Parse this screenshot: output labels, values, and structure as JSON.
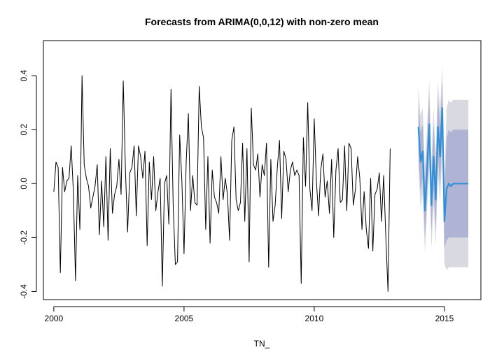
{
  "chart_data": {
    "type": "line",
    "title": "Forecasts from ARIMA(0,0,12) with non-zero mean",
    "xlabel": "TN_",
    "ylabel": "",
    "xlim": [
      1999.6,
      2016.4
    ],
    "ylim": [
      -0.43,
      0.53
    ],
    "x_ticks": [
      2000,
      2005,
      2010,
      2015
    ],
    "y_ticks": [
      -0.4,
      -0.2,
      0.0,
      0.2,
      0.4
    ],
    "x_tick_labels": [
      "2000",
      "2005",
      "2010",
      "2015"
    ],
    "y_tick_labels": [
      "-0.4",
      "-0.2",
      "0.0",
      "0.2",
      "0.4"
    ],
    "grid": false,
    "legend": "none",
    "series": [
      {
        "role": "observed",
        "color": "#000000",
        "start": 2000.0,
        "frequency": 12,
        "values": [
          -0.03,
          0.08,
          0.06,
          -0.33,
          0.06,
          -0.03,
          0.01,
          0.02,
          0.14,
          -0.03,
          -0.36,
          0.03,
          -0.17,
          0.4,
          0.07,
          0.02,
          -0.01,
          -0.09,
          -0.05,
          -0.01,
          0.07,
          -0.19,
          0.01,
          -0.16,
          0.1,
          -0.21,
          0.13,
          -0.11,
          -0.04,
          -0.01,
          0.09,
          -0.04,
          0.38,
          0.05,
          -0.18,
          0.04,
          0.06,
          0.14,
          -0.12,
          0.14,
          0.1,
          0.02,
          0.12,
          -0.23,
          0.08,
          -0.06,
          0.1,
          -0.1,
          -0.03,
          0.02,
          -0.38,
          0.0,
          0.03,
          -0.15,
          0.35,
          -0.08,
          -0.3,
          -0.29,
          0.18,
          0.01,
          -0.26,
          0.08,
          0.26,
          -0.1,
          0.03,
          -0.07,
          -0.08,
          0.36,
          0.21,
          0.17,
          -0.17,
          0.1,
          -0.22,
          0.05,
          -0.05,
          -0.07,
          -0.11,
          0.1,
          -0.06,
          0.02,
          -0.04,
          -0.21,
          0.16,
          0.21,
          -0.06,
          -0.1,
          -0.07,
          0.15,
          -0.14,
          0.13,
          -0.29,
          0.28,
          0.07,
          0.05,
          0.11,
          -0.05,
          0.07,
          0.03,
          0.15,
          -0.31,
          0.09,
          -0.14,
          -0.08,
          0.06,
          0.16,
          -0.13,
          0.12,
          0.09,
          -0.03,
          0.05,
          0.08,
          0.03,
          0.05,
          0.03,
          -0.37,
          0.17,
          -0.01,
          0.3,
          -0.02,
          -0.1,
          0.24,
          0.01,
          -0.12,
          0.05,
          0.11,
          -0.05,
          0.01,
          -0.11,
          0.09,
          -0.2,
          0.05,
          0.13,
          -0.07,
          -0.06,
          0.14,
          -0.1,
          0.15,
          0.13,
          -0.08,
          -0.02,
          0.1,
          0.02,
          -0.17,
          -0.03,
          -0.17,
          -0.24,
          0.02,
          -0.25,
          -0.04,
          -0.02,
          0.04,
          -0.14,
          0.03,
          -0.2,
          -0.4,
          0.13
        ]
      },
      {
        "role": "forecast_mean",
        "color": "#2f8fd8",
        "start": 2014.0,
        "frequency": 12,
        "values": [
          0.21,
          0.08,
          0.12,
          -0.1,
          0.05,
          0.22,
          -0.08,
          0.1,
          -0.06,
          0.21,
          0.1,
          0.28,
          -0.14,
          -0.02,
          0.0,
          -0.01,
          0.0,
          0.0,
          0.0,
          0.0,
          0.0,
          0.0,
          0.0,
          0.0
        ]
      }
    ],
    "intervals": [
      {
        "level": "95%",
        "color": "#d9d9e2",
        "lower": [
          0.06,
          -0.09,
          -0.04,
          -0.26,
          -0.1,
          0.05,
          -0.24,
          -0.08,
          -0.23,
          0.04,
          -0.07,
          0.12,
          -0.3,
          -0.32,
          -0.31,
          -0.31,
          -0.31,
          -0.31,
          -0.31,
          -0.31,
          -0.31,
          -0.31,
          -0.31,
          -0.31
        ],
        "upper": [
          0.36,
          0.25,
          0.28,
          0.06,
          0.21,
          0.39,
          0.08,
          0.28,
          0.11,
          0.38,
          0.27,
          0.44,
          0.02,
          0.28,
          0.31,
          0.3,
          0.31,
          0.31,
          0.31,
          0.31,
          0.31,
          0.31,
          0.31,
          0.31
        ]
      },
      {
        "level": "80%",
        "color": "#b0b4d4",
        "lower": [
          0.12,
          -0.03,
          0.02,
          -0.2,
          -0.05,
          0.11,
          -0.18,
          -0.02,
          -0.17,
          0.1,
          -0.01,
          0.18,
          -0.24,
          -0.21,
          -0.2,
          -0.2,
          -0.2,
          -0.2,
          -0.2,
          -0.2,
          -0.2,
          -0.2,
          -0.2,
          -0.2
        ],
        "upper": [
          0.3,
          0.19,
          0.22,
          0.0,
          0.15,
          0.33,
          0.02,
          0.22,
          0.05,
          0.32,
          0.21,
          0.38,
          -0.04,
          0.17,
          0.2,
          0.19,
          0.2,
          0.2,
          0.2,
          0.2,
          0.2,
          0.2,
          0.2,
          0.2
        ]
      }
    ]
  }
}
